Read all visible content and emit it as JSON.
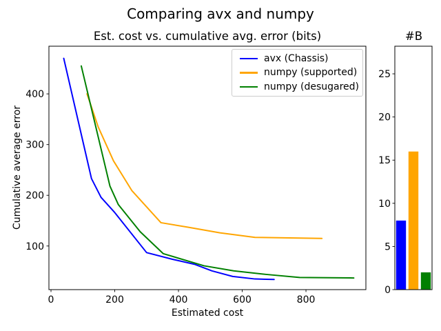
{
  "figure": {
    "suptitle": "Comparing avx and numpy",
    "background": "#ffffff",
    "text_color": "#000000"
  },
  "chart_data": [
    {
      "type": "line",
      "title": "Est. cost vs. cumulative avg. error (bits)",
      "xlabel": "Estimated cost",
      "ylabel": "Cumulative average error",
      "xlim": [
        -6.5,
        988
      ],
      "ylim": [
        14,
        494
      ],
      "xticks": [
        0,
        200,
        400,
        600,
        800
      ],
      "yticks": [
        100,
        200,
        300,
        400
      ],
      "grid": false,
      "legend_position": "upper right",
      "series": [
        {
          "name": "avx (Chassis)",
          "color": "#0000ff",
          "points": [
            [
              40,
              470
            ],
            [
              127,
              233
            ],
            [
              157,
              196
            ],
            [
              200,
              166
            ],
            [
              300,
              87
            ],
            [
              380,
              74
            ],
            [
              450,
              64
            ],
            [
              505,
              51
            ],
            [
              570,
              40
            ],
            [
              640,
              35
            ],
            [
              700,
              34
            ]
          ]
        },
        {
          "name": "numpy (supported)",
          "color": "#ffa500",
          "points": [
            [
              113,
              400
            ],
            [
              148,
              335
            ],
            [
              196,
              268
            ],
            [
              254,
              209
            ],
            [
              345,
              146
            ],
            [
              430,
              137
            ],
            [
              530,
              126
            ],
            [
              640,
              117
            ],
            [
              850,
              115
            ]
          ]
        },
        {
          "name": "numpy (desugared)",
          "color": "#008000",
          "points": [
            [
              95,
              455
            ],
            [
              185,
              218
            ],
            [
              211,
              182
            ],
            [
              280,
              128
            ],
            [
              352,
              85
            ],
            [
              480,
              61
            ],
            [
              573,
              51
            ],
            [
              675,
              44
            ],
            [
              780,
              38
            ],
            [
              950,
              37
            ]
          ]
        }
      ]
    },
    {
      "type": "bar",
      "title": "#B",
      "categories": [
        "avx (Chassis)",
        "numpy (supported)",
        "numpy (desugared)"
      ],
      "values": [
        8,
        16,
        2
      ],
      "colors": [
        "#0000ff",
        "#ffa500",
        "#008000"
      ],
      "ylim": [
        0,
        28.2
      ],
      "yticks": [
        0,
        5,
        10,
        15,
        20,
        25
      ],
      "grid": false
    }
  ]
}
